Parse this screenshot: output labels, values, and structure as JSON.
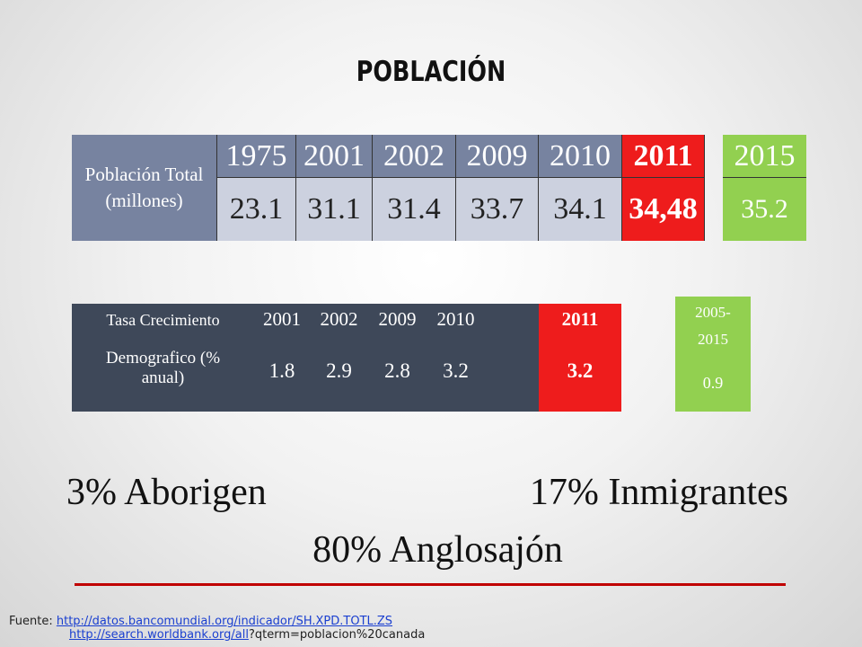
{
  "title": "POBLACIÓN",
  "population_table": {
    "label": "Población Total (millones)",
    "years": [
      "1975",
      "2001",
      "2002",
      "2009",
      "2010",
      "2011"
    ],
    "values": [
      "23.1",
      "31.1",
      "31.4",
      "33.7",
      "34.1",
      "34,48"
    ],
    "projection_year": "2015",
    "projection_value": "35.2"
  },
  "growth_table": {
    "label_line1": "Tasa Crecimiento",
    "label_line2": "Demografico (% anual)",
    "years": [
      "2001",
      "2002",
      "2009",
      "2010",
      "2011"
    ],
    "values": [
      "1.8",
      "2.9",
      "2.8",
      "3.2",
      "3.2"
    ],
    "projection_period_line1": "2005-",
    "projection_period_line2": "2015",
    "projection_value": "0.9"
  },
  "composition": {
    "aboriginal": "3% Aborigen",
    "immigrants": "17% Inmigrantes",
    "anglo": "80% Anglosajón"
  },
  "source": {
    "label": "Fuente:",
    "link1": "http://datos.bancomundial.org/indicador/SH.XPD.TOTL.ZS",
    "link2": "http://search.worldbank.org/all",
    "link2_suffix": "?qterm=poblacion%20canada"
  }
}
